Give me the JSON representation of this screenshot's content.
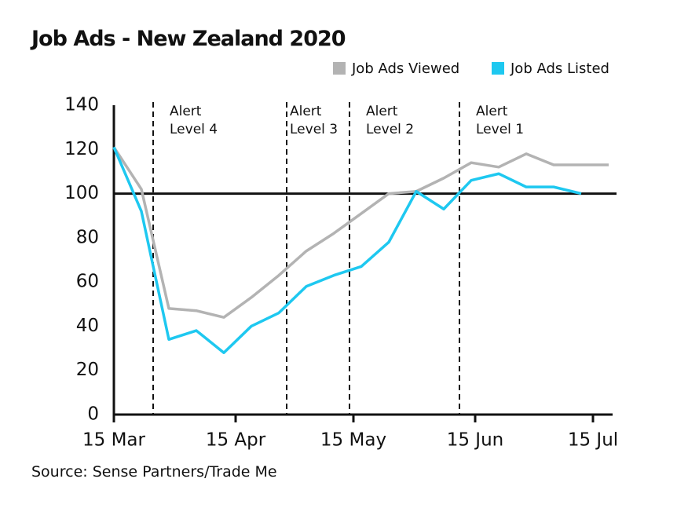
{
  "chart_data": {
    "type": "line",
    "title": "Job Ads - New Zealand 2020",
    "source": "Source: Sense Partners/Trade Me",
    "x": [
      "15 Mar",
      "22 Mar",
      "29 Mar",
      "5 Apr",
      "12 Apr",
      "19 Apr",
      "26 Apr",
      "3 May",
      "10 May",
      "17 May",
      "24 May",
      "31 May",
      "7 Jun",
      "14 Jun",
      "21 Jun",
      "28 Jun",
      "5 Jul",
      "12 Jul",
      "19 Jul"
    ],
    "series": [
      {
        "name": "Job Ads Viewed",
        "color": "#b3b3b3",
        "values": [
          121,
          102,
          48,
          47,
          44,
          53,
          63,
          74,
          82,
          91,
          100,
          101,
          107,
          114,
          112,
          118,
          113,
          113,
          113
        ]
      },
      {
        "name": "Job Ads Listed",
        "color": "#1ec8f0",
        "values": [
          121,
          92,
          34,
          38,
          28,
          40,
          46,
          58,
          63,
          67,
          78,
          101,
          93,
          106,
          109,
          103,
          103,
          100,
          null
        ]
      }
    ],
    "xlim": [
      "15 Mar",
      "20 Jul"
    ],
    "xticks": [
      "15 Mar",
      "15 Apr",
      "15 May",
      "15 Jun",
      "15 Jul"
    ],
    "ylim": [
      0,
      140
    ],
    "yticks": [
      0,
      20,
      40,
      60,
      80,
      100,
      120,
      140
    ],
    "reference_line": 100,
    "alert_levels": [
      {
        "date": "25 Mar",
        "label": "Alert Level 4"
      },
      {
        "date": "28 Apr",
        "label": "Alert Level 3"
      },
      {
        "date": "14 May",
        "label": "Alert Level 2"
      },
      {
        "date": "11 Jun",
        "label": "Alert Level 1"
      }
    ],
    "legend": "top-right",
    "grid": false
  }
}
